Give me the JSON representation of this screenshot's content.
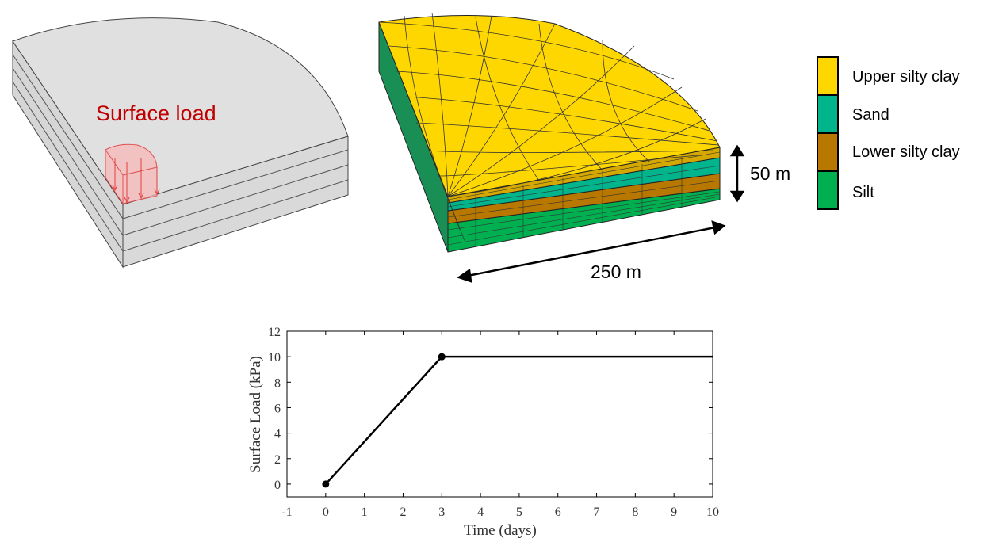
{
  "left_model": {
    "surface_load_label": "Surface load",
    "surface_load_color": "#c00000",
    "block_color": "#e0e0e0"
  },
  "mesh_model": {
    "depth_label": "50 m",
    "width_label": "250 m"
  },
  "legend": {
    "items": [
      {
        "label": "Upper silty clay",
        "color": "#ffd700"
      },
      {
        "label": "Sand",
        "color": "#00b48c"
      },
      {
        "label": "Lower silty clay",
        "color": "#b87800"
      },
      {
        "label": "Silt",
        "color": "#00b050"
      }
    ]
  },
  "chart_data": {
    "type": "line",
    "xlabel": "Time (days)",
    "ylabel": "Surface Load (kPa)",
    "xlim": [
      -1,
      10
    ],
    "ylim": [
      -1,
      12
    ],
    "xticks": [
      -1,
      0,
      1,
      2,
      3,
      4,
      5,
      6,
      7,
      8,
      9,
      10
    ],
    "yticks": [
      0,
      2,
      4,
      6,
      8,
      10,
      12
    ],
    "series": [
      {
        "x": [
          0,
          3,
          10
        ],
        "y": [
          0,
          10,
          10
        ],
        "markers_at": [
          0,
          1
        ],
        "color": "#000000"
      }
    ]
  }
}
